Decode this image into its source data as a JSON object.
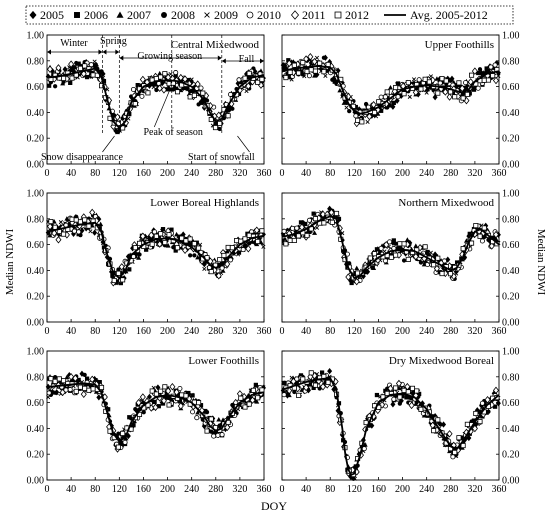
{
  "figure": {
    "ylabel": "Median NDWI",
    "xlabel": "DOY",
    "legend": [
      {
        "name": "2005",
        "marker": "diamond_filled"
      },
      {
        "name": "2006",
        "marker": "square_filled"
      },
      {
        "name": "2007",
        "marker": "triangle_filled"
      },
      {
        "name": "2008",
        "marker": "circle_filled"
      },
      {
        "name": "2009",
        "marker": "cross"
      },
      {
        "name": "2010",
        "marker": "circle_open"
      },
      {
        "name": "2011",
        "marker": "diamond_open"
      },
      {
        "name": "2012",
        "marker": "square_open"
      },
      {
        "name": "Avg. 2005-2012",
        "marker": "line"
      }
    ],
    "yticks": [
      "0.00",
      "0.20",
      "0.40",
      "0.60",
      "0.80",
      "1.00"
    ],
    "xticks": [
      "0",
      "40",
      "80",
      "120",
      "160",
      "200",
      "240",
      "280",
      "320",
      "360"
    ]
  },
  "chart_data": [
    {
      "type": "scatter",
      "title": "Central Mixedwood",
      "xlim": [
        0,
        360
      ],
      "ylim": [
        0,
        1
      ],
      "series": [
        {
          "name": "Avg. 2005-2012",
          "x": [
            0,
            20,
            40,
            60,
            80,
            90,
            100,
            110,
            120,
            130,
            140,
            160,
            180,
            200,
            220,
            240,
            260,
            270,
            280,
            290,
            300,
            320,
            340,
            360
          ],
          "y": [
            0.67,
            0.68,
            0.7,
            0.72,
            0.74,
            0.68,
            0.5,
            0.33,
            0.28,
            0.33,
            0.48,
            0.6,
            0.64,
            0.65,
            0.64,
            0.6,
            0.5,
            0.4,
            0.33,
            0.35,
            0.45,
            0.6,
            0.67,
            0.69
          ]
        }
      ],
      "annotations": [
        "Winter",
        "Spring",
        "Growing season",
        "Fall",
        "Peak of season",
        "Snow disappearance",
        "Start of snowfall"
      ]
    },
    {
      "type": "scatter",
      "title": "Upper Foothills",
      "xlim": [
        0,
        360
      ],
      "ylim": [
        0,
        1
      ],
      "series": [
        {
          "name": "Avg. 2005-2012",
          "x": [
            0,
            20,
            40,
            60,
            80,
            90,
            100,
            110,
            120,
            130,
            140,
            160,
            180,
            200,
            220,
            240,
            260,
            280,
            300,
            310,
            320,
            340,
            360
          ],
          "y": [
            0.72,
            0.74,
            0.75,
            0.76,
            0.75,
            0.7,
            0.58,
            0.47,
            0.41,
            0.39,
            0.4,
            0.44,
            0.51,
            0.58,
            0.6,
            0.61,
            0.6,
            0.58,
            0.55,
            0.58,
            0.64,
            0.7,
            0.72
          ]
        }
      ]
    },
    {
      "type": "scatter",
      "title": "Lower Boreal Highlands",
      "xlim": [
        0,
        360
      ],
      "ylim": [
        0,
        1
      ],
      "series": [
        {
          "name": "Avg. 2005-2012",
          "x": [
            0,
            20,
            40,
            60,
            80,
            90,
            100,
            110,
            120,
            130,
            140,
            160,
            180,
            200,
            220,
            240,
            260,
            270,
            280,
            290,
            300,
            320,
            340,
            360
          ],
          "y": [
            0.7,
            0.72,
            0.74,
            0.76,
            0.77,
            0.7,
            0.52,
            0.38,
            0.34,
            0.4,
            0.52,
            0.6,
            0.64,
            0.65,
            0.63,
            0.58,
            0.5,
            0.44,
            0.42,
            0.44,
            0.5,
            0.6,
            0.65,
            0.67
          ]
        }
      ]
    },
    {
      "type": "scatter",
      "title": "Northern Mixedwood",
      "xlim": [
        0,
        360
      ],
      "ylim": [
        0,
        1
      ],
      "series": [
        {
          "name": "Avg. 2005-2012",
          "x": [
            0,
            20,
            40,
            60,
            80,
            90,
            100,
            110,
            120,
            130,
            140,
            160,
            180,
            200,
            220,
            240,
            260,
            280,
            290,
            300,
            310,
            320,
            330,
            340,
            360
          ],
          "y": [
            0.66,
            0.68,
            0.72,
            0.78,
            0.82,
            0.8,
            0.62,
            0.42,
            0.34,
            0.36,
            0.42,
            0.5,
            0.55,
            0.56,
            0.55,
            0.5,
            0.45,
            0.4,
            0.42,
            0.5,
            0.62,
            0.7,
            0.72,
            0.68,
            0.6
          ]
        }
      ]
    },
    {
      "type": "scatter",
      "title": "Lower Foothills",
      "xlim": [
        0,
        360
      ],
      "ylim": [
        0,
        1
      ],
      "series": [
        {
          "name": "Avg. 2005-2012",
          "x": [
            0,
            20,
            40,
            60,
            80,
            90,
            100,
            110,
            120,
            130,
            140,
            160,
            180,
            200,
            220,
            240,
            260,
            270,
            280,
            290,
            300,
            320,
            340,
            360
          ],
          "y": [
            0.72,
            0.73,
            0.74,
            0.75,
            0.74,
            0.68,
            0.52,
            0.36,
            0.3,
            0.33,
            0.45,
            0.58,
            0.64,
            0.66,
            0.64,
            0.6,
            0.5,
            0.42,
            0.38,
            0.4,
            0.48,
            0.6,
            0.66,
            0.68
          ]
        }
      ]
    },
    {
      "type": "scatter",
      "title": "Dry Mixedwood Boreal",
      "xlim": [
        0,
        360
      ],
      "ylim": [
        0,
        1
      ],
      "series": [
        {
          "name": "Avg. 2005-2012",
          "x": [
            0,
            20,
            40,
            60,
            80,
            90,
            100,
            105,
            110,
            115,
            120,
            130,
            140,
            160,
            180,
            200,
            220,
            240,
            260,
            280,
            290,
            300,
            320,
            340,
            360
          ],
          "y": [
            0.7,
            0.73,
            0.76,
            0.78,
            0.79,
            0.7,
            0.4,
            0.2,
            0.08,
            0.04,
            0.05,
            0.2,
            0.4,
            0.6,
            0.66,
            0.67,
            0.64,
            0.55,
            0.4,
            0.26,
            0.24,
            0.3,
            0.45,
            0.58,
            0.66
          ]
        }
      ]
    }
  ]
}
